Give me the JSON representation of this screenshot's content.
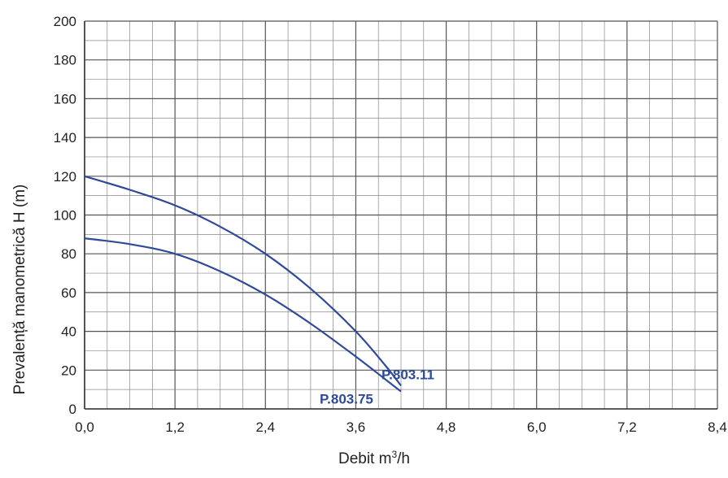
{
  "chart_data": {
    "type": "line",
    "title": "",
    "xlabel": "Debit m³/h",
    "xlabel_base": "Debit m",
    "xlabel_sup": "3",
    "xlabel_tail": "/h",
    "ylabel": "Prevalență manometrică H (m)",
    "xlim": [
      0,
      8.4
    ],
    "ylim": [
      0,
      200
    ],
    "x_ticks": [
      "0,0",
      "1,2",
      "2,4",
      "3,6",
      "4,8",
      "6,0",
      "7,2",
      "8,4"
    ],
    "y_ticks": [
      "0",
      "20",
      "40",
      "60",
      "80",
      "100",
      "120",
      "140",
      "160",
      "180",
      "200"
    ],
    "grid": true,
    "line_color": "#2e4a9a",
    "series": [
      {
        "name": "P.803.11",
        "x": [
          0,
          0.6,
          1.2,
          1.8,
          2.4,
          3.0,
          3.6,
          4.0,
          4.2
        ],
        "y": [
          120,
          113,
          105,
          94,
          80,
          62,
          40,
          22,
          12
        ]
      },
      {
        "name": "P.803.75",
        "x": [
          0,
          0.6,
          1.2,
          1.8,
          2.4,
          3.0,
          3.6,
          4.0,
          4.2
        ],
        "y": [
          88,
          85,
          80,
          71,
          59,
          44,
          27,
          15,
          9
        ]
      }
    ]
  }
}
